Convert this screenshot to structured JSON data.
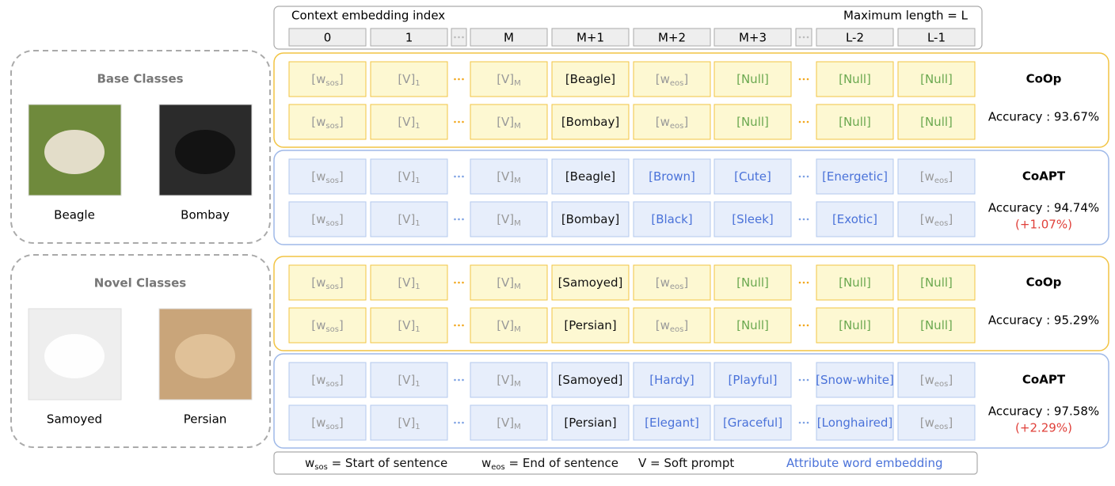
{
  "header": {
    "title": "Context embedding index",
    "max_length": "Maximum length = L",
    "indices": [
      "0",
      "1",
      "M",
      "M+1",
      "M+2",
      "M+3",
      "L-2",
      "L-1"
    ]
  },
  "panels": [
    {
      "title": "Base Classes",
      "images": [
        {
          "label": "Beagle",
          "color": "#6f8a3c"
        },
        {
          "label": "Bombay",
          "color": "#2b2b2b"
        }
      ]
    },
    {
      "title": "Novel Classes",
      "images": [
        {
          "label": "Samoyed",
          "color": "#eeeeee"
        },
        {
          "label": "Persian",
          "color": "#c9a57a"
        }
      ]
    }
  ],
  "groups": [
    {
      "method": "CoOp",
      "accuracy": "Accuracy : 93.67%",
      "theme": {
        "border": "#f2c443",
        "fill": "#fdf8d2",
        "cell": "#f2c443",
        "dots": "#f2a81e"
      },
      "rows": [
        [
          {
            "text": "[w",
            "sub": "sos",
            "after": "]",
            "color": "#999999"
          },
          {
            "text": "[V]",
            "sub": "1",
            "color": "#999999"
          },
          {
            "text": "[V]",
            "sub": "M",
            "color": "#999999"
          },
          {
            "text": "[Beagle]",
            "color": "#111111"
          },
          {
            "text": "[w",
            "sub": "eos",
            "after": "]",
            "color": "#999999"
          },
          {
            "text": "[Null]",
            "color": "#6aa84f"
          },
          {
            "text": "[Null]",
            "color": "#6aa84f"
          },
          {
            "text": "[Null]",
            "color": "#6aa84f"
          }
        ],
        [
          {
            "text": "[w",
            "sub": "sos",
            "after": "]",
            "color": "#999999"
          },
          {
            "text": "[V]",
            "sub": "1",
            "color": "#999999"
          },
          {
            "text": "[V]",
            "sub": "M",
            "color": "#999999"
          },
          {
            "text": "[Bombay]",
            "color": "#111111"
          },
          {
            "text": "[w",
            "sub": "eos",
            "after": "]",
            "color": "#999999"
          },
          {
            "text": "[Null]",
            "color": "#6aa84f"
          },
          {
            "text": "[Null]",
            "color": "#6aa84f"
          },
          {
            "text": "[Null]",
            "color": "#6aa84f"
          }
        ]
      ]
    },
    {
      "method": "CoAPT",
      "accuracy": "Accuracy : 94.74%",
      "delta": "(+1.07%)",
      "theme": {
        "border": "#9fb9e8",
        "fill": "#e7eefb",
        "cell": "#b3c8ee",
        "dots": "#7da1e3"
      },
      "rows": [
        [
          {
            "text": "[w",
            "sub": "sos",
            "after": "]",
            "color": "#999999"
          },
          {
            "text": "[V]",
            "sub": "1",
            "color": "#999999"
          },
          {
            "text": "[V]",
            "sub": "M",
            "color": "#999999"
          },
          {
            "text": "[Beagle]",
            "color": "#111111"
          },
          {
            "text": "[Brown]",
            "color": "#4a72d9"
          },
          {
            "text": "[Cute]",
            "color": "#4a72d9"
          },
          {
            "text": "[Energetic]",
            "color": "#4a72d9"
          },
          {
            "text": "[w",
            "sub": "eos",
            "after": "]",
            "color": "#999999"
          }
        ],
        [
          {
            "text": "[w",
            "sub": "sos",
            "after": "]",
            "color": "#999999"
          },
          {
            "text": "[V]",
            "sub": "1",
            "color": "#999999"
          },
          {
            "text": "[V]",
            "sub": "M",
            "color": "#999999"
          },
          {
            "text": "[Bombay]",
            "color": "#111111"
          },
          {
            "text": "[Black]",
            "color": "#4a72d9"
          },
          {
            "text": "[Sleek]",
            "color": "#4a72d9"
          },
          {
            "text": "[Exotic]",
            "color": "#4a72d9"
          },
          {
            "text": "[w",
            "sub": "eos",
            "after": "]",
            "color": "#999999"
          }
        ]
      ]
    },
    {
      "method": "CoOp",
      "accuracy": "Accuracy : 95.29%",
      "theme": {
        "border": "#f2c443",
        "fill": "#fdf8d2",
        "cell": "#f2c443",
        "dots": "#f2a81e"
      },
      "rows": [
        [
          {
            "text": "[w",
            "sub": "sos",
            "after": "]",
            "color": "#999999"
          },
          {
            "text": "[V]",
            "sub": "1",
            "color": "#999999"
          },
          {
            "text": "[V]",
            "sub": "M",
            "color": "#999999"
          },
          {
            "text": "[Samoyed]",
            "color": "#111111"
          },
          {
            "text": "[w",
            "sub": "eos",
            "after": "]",
            "color": "#999999"
          },
          {
            "text": "[Null]",
            "color": "#6aa84f"
          },
          {
            "text": "[Null]",
            "color": "#6aa84f"
          },
          {
            "text": "[Null]",
            "color": "#6aa84f"
          }
        ],
        [
          {
            "text": "[w",
            "sub": "sos",
            "after": "]",
            "color": "#999999"
          },
          {
            "text": "[V]",
            "sub": "1",
            "color": "#999999"
          },
          {
            "text": "[V]",
            "sub": "M",
            "color": "#999999"
          },
          {
            "text": "[Persian]",
            "color": "#111111"
          },
          {
            "text": "[w",
            "sub": "eos",
            "after": "]",
            "color": "#999999"
          },
          {
            "text": "[Null]",
            "color": "#6aa84f"
          },
          {
            "text": "[Null]",
            "color": "#6aa84f"
          },
          {
            "text": "[Null]",
            "color": "#6aa84f"
          }
        ]
      ]
    },
    {
      "method": "CoAPT",
      "accuracy": "Accuracy : 97.58%",
      "delta": "(+2.29%)",
      "theme": {
        "border": "#9fb9e8",
        "fill": "#e7eefb",
        "cell": "#b3c8ee",
        "dots": "#7da1e3"
      },
      "rows": [
        [
          {
            "text": "[w",
            "sub": "sos",
            "after": "]",
            "color": "#999999"
          },
          {
            "text": "[V]",
            "sub": "1",
            "color": "#999999"
          },
          {
            "text": "[V]",
            "sub": "M",
            "color": "#999999"
          },
          {
            "text": "[Samoyed]",
            "color": "#111111"
          },
          {
            "text": "[Hardy]",
            "color": "#4a72d9"
          },
          {
            "text": "[Playful]",
            "color": "#4a72d9"
          },
          {
            "text": "[Snow-white]",
            "color": "#4a72d9"
          },
          {
            "text": "[w",
            "sub": "eos",
            "after": "]",
            "color": "#999999"
          }
        ],
        [
          {
            "text": "[w",
            "sub": "sos",
            "after": "]",
            "color": "#999999"
          },
          {
            "text": "[V]",
            "sub": "1",
            "color": "#999999"
          },
          {
            "text": "[V]",
            "sub": "M",
            "color": "#999999"
          },
          {
            "text": "[Persian]",
            "color": "#111111"
          },
          {
            "text": "[Elegant]",
            "color": "#4a72d9"
          },
          {
            "text": "[Graceful]",
            "color": "#4a72d9"
          },
          {
            "text": "[Longhaired]",
            "color": "#4a72d9"
          },
          {
            "text": "[w",
            "sub": "eos",
            "after": "]",
            "color": "#999999"
          }
        ]
      ]
    }
  ],
  "legend": [
    {
      "text": "w",
      "sub": "sos",
      "after": " = Start of sentence",
      "color": "#111111"
    },
    {
      "text": "w",
      "sub": "eos",
      "after": " = End of sentence",
      "color": "#111111"
    },
    {
      "text": "V = Soft prompt",
      "color": "#111111"
    },
    {
      "text": "Attribute word embedding",
      "color": "#4a72d9"
    }
  ]
}
